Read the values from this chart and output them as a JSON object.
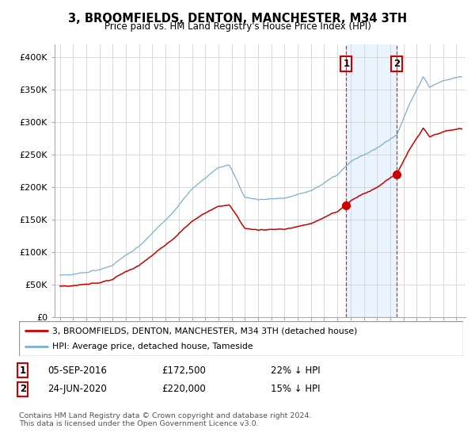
{
  "title": "3, BROOMFIELDS, DENTON, MANCHESTER, M34 3TH",
  "subtitle": "Price paid vs. HM Land Registry's House Price Index (HPI)",
  "hpi_label": "HPI: Average price, detached house, Tameside",
  "property_label": "3, BROOMFIELDS, DENTON, MANCHESTER, M34 3TH (detached house)",
  "hpi_color": "#7bafd4",
  "hpi_fill_color": "#ddeeff",
  "property_color": "#cc0000",
  "transaction1": {
    "date": "05-SEP-2016",
    "price": 172500,
    "hpi_diff": "22% ↓ HPI",
    "year": 2016.67
  },
  "transaction2": {
    "date": "24-JUN-2020",
    "price": 220000,
    "hpi_diff": "15% ↓ HPI",
    "year": 2020.47
  },
  "ylim": [
    0,
    420000
  ],
  "yticks": [
    0,
    50000,
    100000,
    150000,
    200000,
    250000,
    300000,
    350000,
    400000
  ],
  "ytick_labels": [
    "£0",
    "£50K",
    "£100K",
    "£150K",
    "£200K",
    "£250K",
    "£300K",
    "£350K",
    "£400K"
  ],
  "copyright_text": "Contains HM Land Registry data © Crown copyright and database right 2024.\nThis data is licensed under the Open Government Licence v3.0.",
  "background_color": "#ffffff",
  "grid_color": "#cccccc",
  "spine_color": "#aaaaaa"
}
